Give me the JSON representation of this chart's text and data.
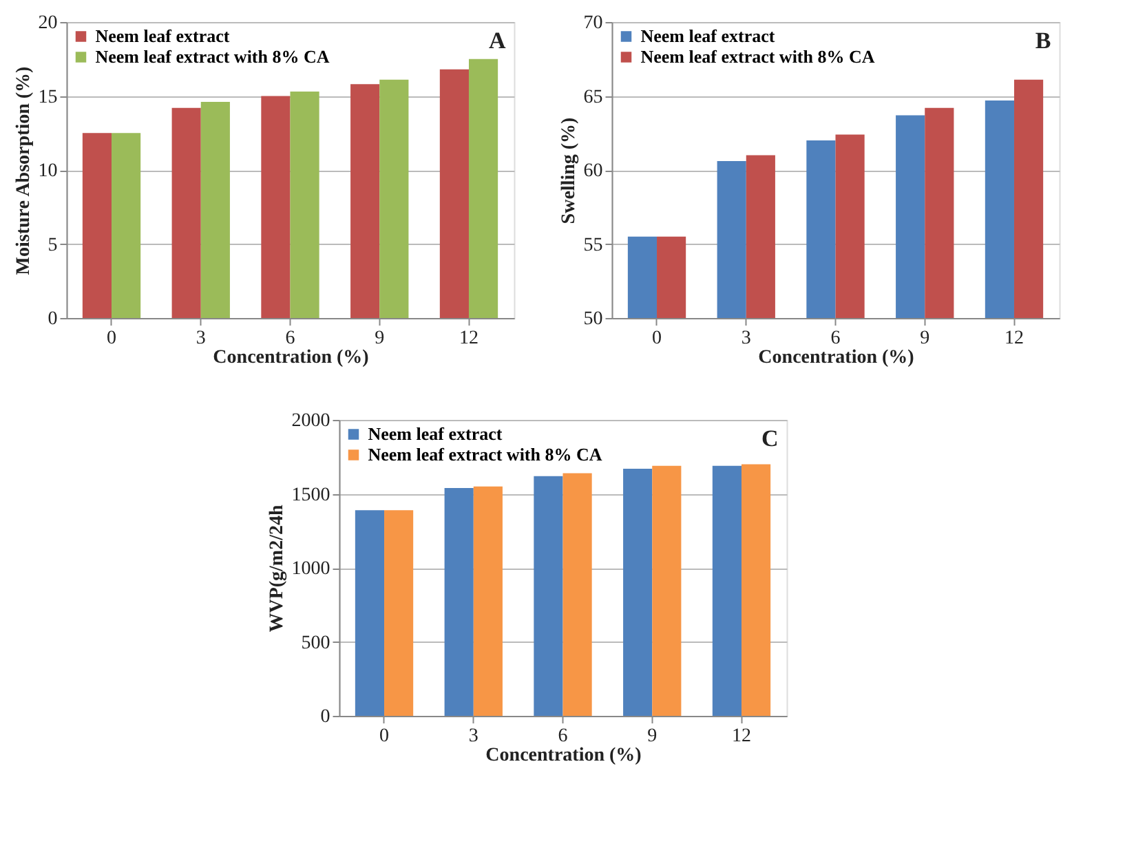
{
  "chart_data": [
    {
      "type": "bar",
      "categories": [
        "0",
        "3",
        "6",
        "9",
        "12"
      ],
      "xlabel": "Concentration (%)",
      "ylabel": "Moisture Absorption (%)",
      "ylim": [
        0,
        20
      ],
      "yticks": [
        0,
        5,
        10,
        15,
        20
      ],
      "grid": "y",
      "legend": "top left",
      "annotations": [
        "A"
      ],
      "series": [
        {
          "name": "Neem leaf extract",
          "color": "#c0504d",
          "values": [
            12.5,
            14.2,
            15.0,
            15.8,
            16.8
          ]
        },
        {
          "name": "Neem leaf extract with 8% CA",
          "color": "#9bbb59",
          "values": [
            12.5,
            14.6,
            15.3,
            16.1,
            17.5
          ]
        }
      ]
    },
    {
      "type": "bar",
      "categories": [
        "0",
        "3",
        "6",
        "9",
        "12"
      ],
      "xlabel": "Concentration (%)",
      "ylabel": "Swelling (%)",
      "ylim": [
        50,
        70
      ],
      "yticks": [
        50,
        55,
        60,
        65,
        70
      ],
      "grid": "y",
      "legend": "top left",
      "annotations": [
        "B"
      ],
      "series": [
        {
          "name": "Neem leaf extract",
          "color": "#4f81bd",
          "values": [
            55.5,
            60.6,
            62.0,
            63.7,
            64.7
          ]
        },
        {
          "name": "Neem leaf extract with 8% CA",
          "color": "#c0504d",
          "values": [
            55.5,
            61.0,
            62.4,
            64.2,
            66.1
          ]
        }
      ]
    },
    {
      "type": "bar",
      "categories": [
        "0",
        "3",
        "6",
        "9",
        "12"
      ],
      "xlabel": "Concentration (%)",
      "ylabel": "WVP(g/m2/24h",
      "ylim": [
        0,
        2000
      ],
      "yticks": [
        0,
        500,
        1000,
        1500,
        2000
      ],
      "grid": "y",
      "legend": "top left",
      "annotations": [
        "C"
      ],
      "series": [
        {
          "name": "Neem leaf extract",
          "color": "#4f81bd",
          "values": [
            1390,
            1540,
            1620,
            1670,
            1690
          ]
        },
        {
          "name": "Neem leaf extract with 8% CA",
          "color": "#f79646",
          "values": [
            1390,
            1550,
            1640,
            1690,
            1700
          ]
        }
      ]
    }
  ]
}
